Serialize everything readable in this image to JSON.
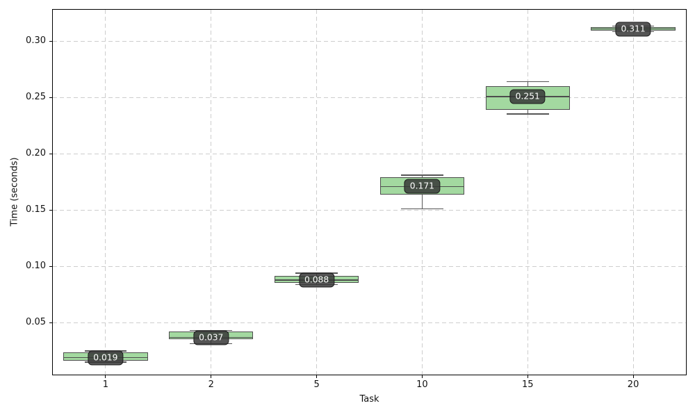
{
  "chart_data": {
    "type": "boxplot",
    "title": "",
    "xlabel": "Task",
    "ylabel": "Time (seconds)",
    "categories": [
      "1",
      "2",
      "5",
      "10",
      "15",
      "20"
    ],
    "yticks": [
      {
        "value": 0.05,
        "label": "0.05"
      },
      {
        "value": 0.1,
        "label": "0.10"
      },
      {
        "value": 0.15,
        "label": "0.15"
      },
      {
        "value": 0.2,
        "label": "0.20"
      },
      {
        "value": 0.25,
        "label": "0.25"
      },
      {
        "value": 0.3,
        "label": "0.30"
      }
    ],
    "xlim": [
      0.5,
      6.5
    ],
    "ylim": [
      0.004,
      0.328
    ],
    "grid": true,
    "legend": "none",
    "box_width": 0.8,
    "colors": {
      "box_fill": "#a3d9a0",
      "box_edge": "#4d4d4d",
      "whisker": "#555555",
      "grid": "#cdcdcd",
      "annotation_bg": "#373737",
      "annotation_bg_alpha": 0.85,
      "annotation_border": "#191919",
      "annotation_text": "#ffffff",
      "axis": "#000000",
      "text": "#111111"
    },
    "boxes": [
      {
        "category": "1",
        "whislo": 0.015,
        "q1": 0.0165,
        "med": 0.019,
        "q3": 0.024,
        "whishi": 0.025,
        "label": "0.019"
      },
      {
        "category": "2",
        "whislo": 0.0315,
        "q1": 0.0355,
        "med": 0.037,
        "q3": 0.042,
        "whishi": 0.043,
        "label": "0.037"
      },
      {
        "category": "5",
        "whislo": 0.084,
        "q1": 0.0855,
        "med": 0.088,
        "q3": 0.0915,
        "whishi": 0.094,
        "label": "0.088"
      },
      {
        "category": "10",
        "whislo": 0.151,
        "q1": 0.164,
        "med": 0.171,
        "q3": 0.179,
        "whishi": 0.181,
        "label": "0.171"
      },
      {
        "category": "15",
        "whislo": 0.2355,
        "q1": 0.239,
        "med": 0.251,
        "q3": 0.26,
        "whishi": 0.264,
        "label": "0.251"
      },
      {
        "category": "20",
        "whislo": 0.3085,
        "q1": 0.3095,
        "med": 0.311,
        "q3": 0.3125,
        "whishi": 0.3135,
        "label": "0.311"
      }
    ]
  }
}
